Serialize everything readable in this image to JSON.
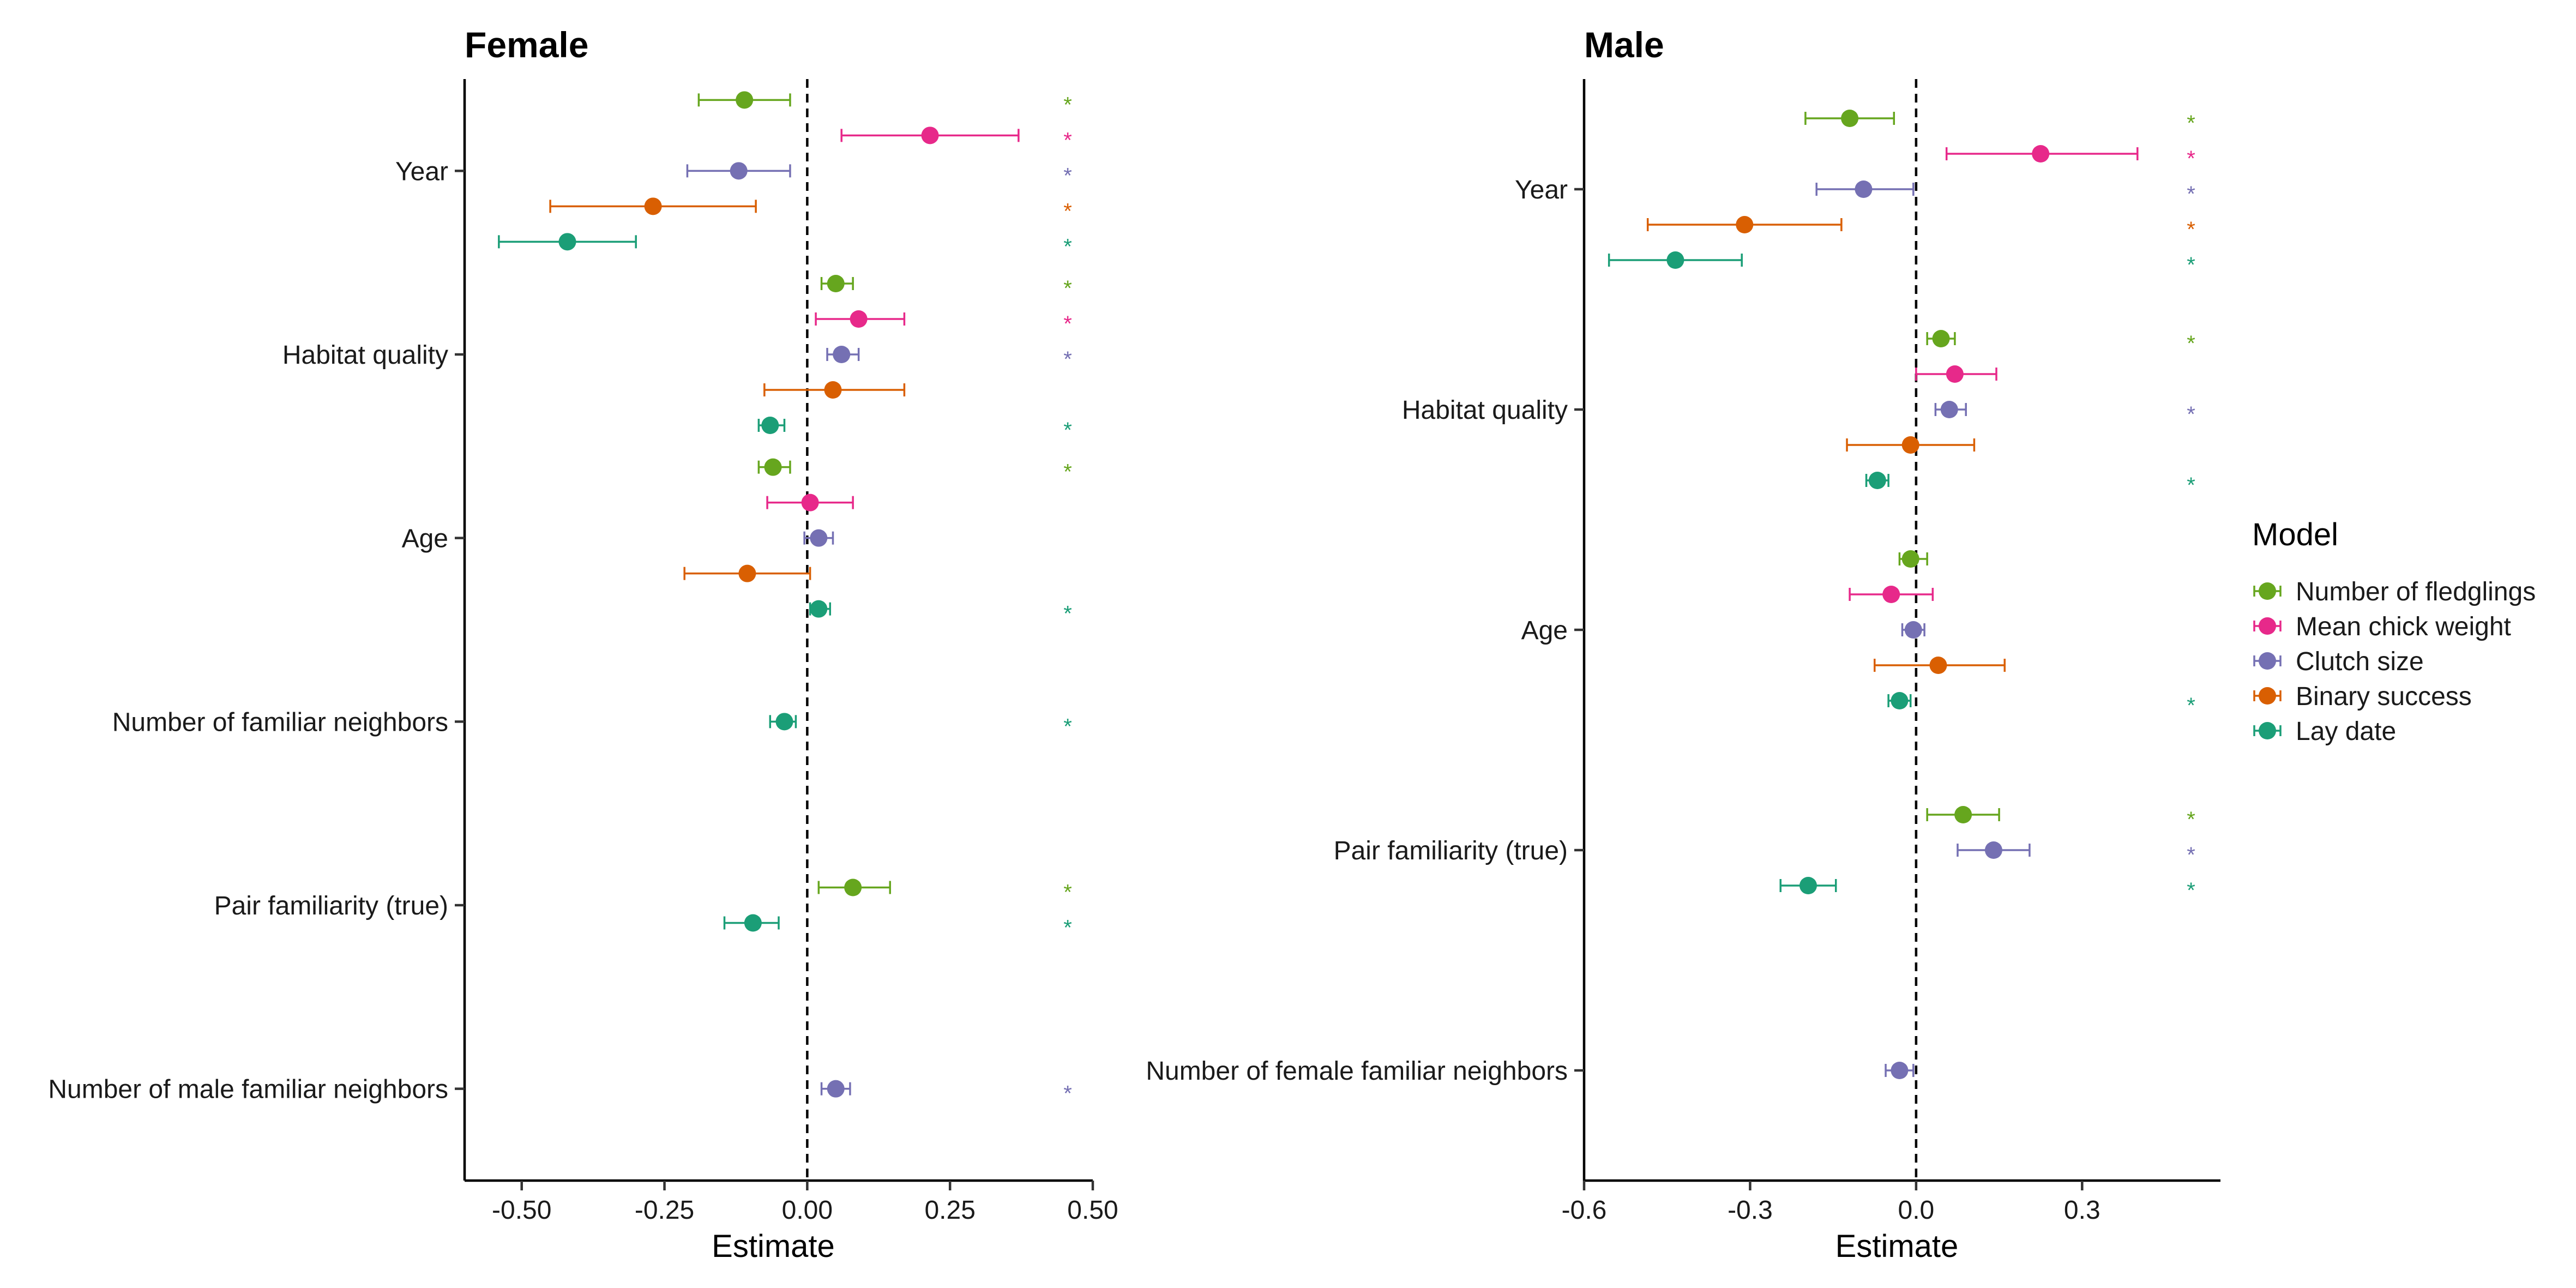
{
  "legend": {
    "title": "Model",
    "entries": [
      {
        "key": "fledglings",
        "label": "Number of fledglings",
        "color": "#66A61E"
      },
      {
        "key": "chick_weight",
        "label": "Mean chick weight",
        "color": "#E7298A"
      },
      {
        "key": "clutch",
        "label": "Clutch size",
        "color": "#7570B3"
      },
      {
        "key": "binary",
        "label": "Binary success",
        "color": "#D95F02"
      },
      {
        "key": "lay_date",
        "label": "Lay date",
        "color": "#1B9E77"
      }
    ]
  },
  "significance_marker": "*",
  "chart_data": [
    {
      "type": "forest",
      "title": "Female",
      "xlabel": "Estimate",
      "xlim": [
        -0.6,
        0.5
      ],
      "xticks": [
        -0.5,
        -0.25,
        0.0,
        0.25,
        0.5
      ],
      "xtick_labels": [
        "-0.50",
        "-0.25",
        "0.00",
        "0.25",
        "0.50"
      ],
      "reference_line": 0,
      "categories": [
        "Year",
        "Habitat quality",
        "Age",
        "Number of familiar neighbors",
        "Pair familiarity (true)",
        "Number of male familiar neighbors"
      ],
      "series": [
        {
          "model": "fledglings",
          "points": [
            {
              "category": "Year",
              "estimate": -0.11,
              "low": -0.19,
              "high": -0.03,
              "sig": true
            },
            {
              "category": "Habitat quality",
              "estimate": 0.05,
              "low": 0.025,
              "high": 0.08,
              "sig": true
            },
            {
              "category": "Age",
              "estimate": -0.06,
              "low": -0.085,
              "high": -0.03,
              "sig": true
            },
            {
              "category": "Pair familiarity (true)",
              "estimate": 0.08,
              "low": 0.02,
              "high": 0.145,
              "sig": true
            }
          ]
        },
        {
          "model": "chick_weight",
          "points": [
            {
              "category": "Year",
              "estimate": 0.215,
              "low": 0.06,
              "high": 0.37,
              "sig": true
            },
            {
              "category": "Habitat quality",
              "estimate": 0.09,
              "low": 0.015,
              "high": 0.17,
              "sig": true
            },
            {
              "category": "Age",
              "estimate": 0.005,
              "low": -0.07,
              "high": 0.08,
              "sig": false
            }
          ]
        },
        {
          "model": "clutch",
          "points": [
            {
              "category": "Year",
              "estimate": -0.12,
              "low": -0.21,
              "high": -0.03,
              "sig": true
            },
            {
              "category": "Habitat quality",
              "estimate": 0.06,
              "low": 0.035,
              "high": 0.09,
              "sig": true
            },
            {
              "category": "Age",
              "estimate": 0.02,
              "low": -0.005,
              "high": 0.045,
              "sig": false
            },
            {
              "category": "Number of male familiar neighbors",
              "estimate": 0.05,
              "low": 0.025,
              "high": 0.075,
              "sig": true
            }
          ]
        },
        {
          "model": "binary",
          "points": [
            {
              "category": "Year",
              "estimate": -0.27,
              "low": -0.45,
              "high": -0.09,
              "sig": true
            },
            {
              "category": "Habitat quality",
              "estimate": 0.045,
              "low": -0.075,
              "high": 0.17,
              "sig": false
            },
            {
              "category": "Age",
              "estimate": -0.105,
              "low": -0.215,
              "high": 0.005,
              "sig": false
            }
          ]
        },
        {
          "model": "lay_date",
          "points": [
            {
              "category": "Year",
              "estimate": -0.42,
              "low": -0.54,
              "high": -0.3,
              "sig": true
            },
            {
              "category": "Habitat quality",
              "estimate": -0.065,
              "low": -0.085,
              "high": -0.04,
              "sig": true
            },
            {
              "category": "Age",
              "estimate": 0.02,
              "low": 0.005,
              "high": 0.04,
              "sig": true
            },
            {
              "category": "Number of familiar neighbors",
              "estimate": -0.04,
              "low": -0.065,
              "high": -0.02,
              "sig": true
            },
            {
              "category": "Pair familiarity (true)",
              "estimate": -0.095,
              "low": -0.145,
              "high": -0.05,
              "sig": true
            }
          ]
        }
      ]
    },
    {
      "type": "forest",
      "title": "Male",
      "xlabel": "Estimate",
      "xlim": [
        -0.6,
        0.55
      ],
      "xticks": [
        -0.6,
        -0.3,
        0.0,
        0.3
      ],
      "xtick_labels": [
        "-0.6",
        "-0.3",
        "0.0",
        "0.3"
      ],
      "reference_line": 0,
      "categories": [
        "Year",
        "Habitat quality",
        "Age",
        "Pair familiarity (true)",
        "Number of female familiar neighbors"
      ],
      "series": [
        {
          "model": "fledglings",
          "points": [
            {
              "category": "Year",
              "estimate": -0.12,
              "low": -0.2,
              "high": -0.04,
              "sig": true
            },
            {
              "category": "Habitat quality",
              "estimate": 0.045,
              "low": 0.02,
              "high": 0.07,
              "sig": true
            },
            {
              "category": "Age",
              "estimate": -0.01,
              "low": -0.03,
              "high": 0.02,
              "sig": false
            },
            {
              "category": "Pair familiarity (true)",
              "estimate": 0.085,
              "low": 0.02,
              "high": 0.15,
              "sig": true
            }
          ]
        },
        {
          "model": "chick_weight",
          "points": [
            {
              "category": "Year",
              "estimate": 0.225,
              "low": 0.055,
              "high": 0.4,
              "sig": true
            },
            {
              "category": "Habitat quality",
              "estimate": 0.07,
              "low": 0.0,
              "high": 0.145,
              "sig": false
            },
            {
              "category": "Age",
              "estimate": -0.045,
              "low": -0.12,
              "high": 0.03,
              "sig": false
            }
          ]
        },
        {
          "model": "clutch",
          "points": [
            {
              "category": "Year",
              "estimate": -0.095,
              "low": -0.18,
              "high": -0.005,
              "sig": true
            },
            {
              "category": "Habitat quality",
              "estimate": 0.06,
              "low": 0.035,
              "high": 0.09,
              "sig": true
            },
            {
              "category": "Age",
              "estimate": -0.005,
              "low": -0.025,
              "high": 0.015,
              "sig": false
            },
            {
              "category": "Pair familiarity (true)",
              "estimate": 0.14,
              "low": 0.075,
              "high": 0.205,
              "sig": true
            },
            {
              "category": "Number of female familiar neighbors",
              "estimate": -0.03,
              "low": -0.055,
              "high": -0.005,
              "sig": false
            }
          ]
        },
        {
          "model": "binary",
          "points": [
            {
              "category": "Year",
              "estimate": -0.31,
              "low": -0.485,
              "high": -0.135,
              "sig": true
            },
            {
              "category": "Habitat quality",
              "estimate": -0.01,
              "low": -0.125,
              "high": 0.105,
              "sig": false
            },
            {
              "category": "Age",
              "estimate": 0.04,
              "low": -0.075,
              "high": 0.16,
              "sig": false
            }
          ]
        },
        {
          "model": "lay_date",
          "points": [
            {
              "category": "Year",
              "estimate": -0.435,
              "low": -0.555,
              "high": -0.315,
              "sig": true
            },
            {
              "category": "Habitat quality",
              "estimate": -0.07,
              "low": -0.09,
              "high": -0.05,
              "sig": true
            },
            {
              "category": "Age",
              "estimate": -0.03,
              "low": -0.05,
              "high": -0.01,
              "sig": true
            },
            {
              "category": "Pair familiarity (true)",
              "estimate": -0.195,
              "low": -0.245,
              "high": -0.145,
              "sig": true
            }
          ]
        }
      ]
    }
  ]
}
